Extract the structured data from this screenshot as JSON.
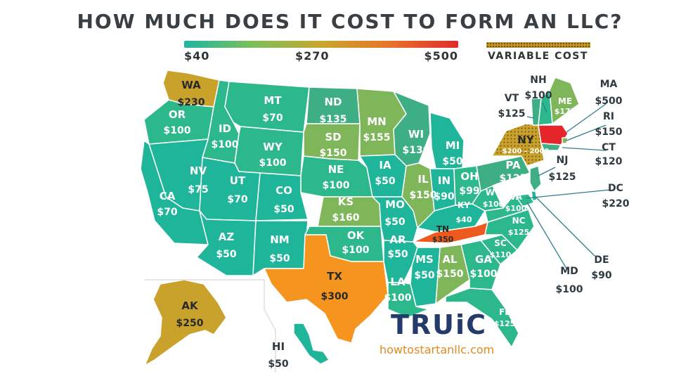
{
  "title": "HOW MUCH DOES IT COST TO FORM AN LLC?",
  "legend": {
    "min_label": "$40",
    "mid_label": "$270",
    "max_label": "$500",
    "min_value": 40,
    "max_value": 500,
    "gradient_colors": [
      "#1fb5a0",
      "#7cbf5a",
      "#c8a62e",
      "#e8742a",
      "#e22a2a"
    ],
    "variable_label": "VARIABLE COST",
    "variable_color": "#c79a2a"
  },
  "colors": {
    "teal": "#1fb59b",
    "green_teal": "#2db88c",
    "sea_green": "#3eaf84",
    "olive": "#7fb65a",
    "gold": "#c9a22c",
    "orange": "#f5951f",
    "dark_orange": "#ee5a1d",
    "red": "#e5242b",
    "border": "#ffffff"
  },
  "states": [
    {
      "abbr": "WA",
      "cost": "$230",
      "fill": "gold"
    },
    {
      "abbr": "OR",
      "cost": "$100",
      "fill": "green_teal"
    },
    {
      "abbr": "ID",
      "cost": "$100",
      "fill": "green_teal"
    },
    {
      "abbr": "MT",
      "cost": "$70",
      "fill": "green_teal"
    },
    {
      "abbr": "WY",
      "cost": "$100",
      "fill": "green_teal"
    },
    {
      "abbr": "ND",
      "cost": "$135",
      "fill": "sea_green"
    },
    {
      "abbr": "SD",
      "cost": "$150",
      "fill": "olive"
    },
    {
      "abbr": "MN",
      "cost": "$155",
      "fill": "olive"
    },
    {
      "abbr": "WI",
      "cost": "$130",
      "fill": "sea_green"
    },
    {
      "abbr": "MI",
      "cost": "$50",
      "fill": "teal"
    },
    {
      "abbr": "NE",
      "cost": "$100",
      "fill": "green_teal"
    },
    {
      "abbr": "IA",
      "cost": "$50",
      "fill": "teal"
    },
    {
      "abbr": "IL",
      "cost": "$150",
      "fill": "olive"
    },
    {
      "abbr": "IN",
      "cost": "$90",
      "fill": "teal"
    },
    {
      "abbr": "OH",
      "cost": "$99",
      "fill": "green_teal"
    },
    {
      "abbr": "NV",
      "cost": "$75",
      "fill": "teal"
    },
    {
      "abbr": "UT",
      "cost": "$70",
      "fill": "teal"
    },
    {
      "abbr": "CO",
      "cost": "$50",
      "fill": "teal"
    },
    {
      "abbr": "KS",
      "cost": "$160",
      "fill": "olive"
    },
    {
      "abbr": "MO",
      "cost": "$50",
      "fill": "teal"
    },
    {
      "abbr": "KY",
      "cost": "$40",
      "fill": "teal"
    },
    {
      "abbr": "WV",
      "cost": "$100",
      "fill": "green_teal"
    },
    {
      "abbr": "VA",
      "cost": "$100",
      "fill": "green_teal"
    },
    {
      "abbr": "CA",
      "cost": "$70",
      "fill": "teal"
    },
    {
      "abbr": "AZ",
      "cost": "$50",
      "fill": "teal"
    },
    {
      "abbr": "NM",
      "cost": "$50",
      "fill": "teal"
    },
    {
      "abbr": "OK",
      "cost": "$100",
      "fill": "green_teal"
    },
    {
      "abbr": "AR",
      "cost": "$50",
      "fill": "teal"
    },
    {
      "abbr": "TN",
      "cost": "$350",
      "fill": "dark_orange"
    },
    {
      "abbr": "NC",
      "cost": "$125",
      "fill": "green_teal"
    },
    {
      "abbr": "SC",
      "cost": "$110",
      "fill": "green_teal"
    },
    {
      "abbr": "GA",
      "cost": "$100",
      "fill": "green_teal"
    },
    {
      "abbr": "AL",
      "cost": "$150",
      "fill": "olive"
    },
    {
      "abbr": "MS",
      "cost": "$50",
      "fill": "teal"
    },
    {
      "abbr": "LA",
      "cost": "$100",
      "fill": "green_teal"
    },
    {
      "abbr": "TX",
      "cost": "$300",
      "fill": "orange"
    },
    {
      "abbr": "FL",
      "cost": "$125",
      "fill": "green_teal"
    },
    {
      "abbr": "PA",
      "cost": "$125",
      "fill": "sea_green"
    },
    {
      "abbr": "NY",
      "cost": "$200 - 2000",
      "fill": "gold",
      "variable": true
    },
    {
      "abbr": "VT",
      "cost": "$125",
      "fill": "sea_green"
    },
    {
      "abbr": "NH",
      "cost": "$100",
      "fill": "green_teal"
    },
    {
      "abbr": "ME",
      "cost": "$175",
      "fill": "olive"
    },
    {
      "abbr": "MA",
      "cost": "$500",
      "fill": "red"
    },
    {
      "abbr": "RI",
      "cost": "$150",
      "fill": "olive"
    },
    {
      "abbr": "CT",
      "cost": "$120",
      "fill": "sea_green"
    },
    {
      "abbr": "NJ",
      "cost": "$125",
      "fill": "sea_green"
    },
    {
      "abbr": "DE",
      "cost": "$90",
      "fill": "teal"
    },
    {
      "abbr": "MD",
      "cost": "$100",
      "fill": "green_teal"
    },
    {
      "abbr": "DC",
      "cost": "$220",
      "fill": "gold"
    },
    {
      "abbr": "AK",
      "cost": "$250",
      "fill": "gold"
    },
    {
      "abbr": "HI",
      "cost": "$50",
      "fill": "teal"
    }
  ],
  "brand": {
    "logo_text": "TRUiC",
    "url": "howtostartanllc.com"
  }
}
